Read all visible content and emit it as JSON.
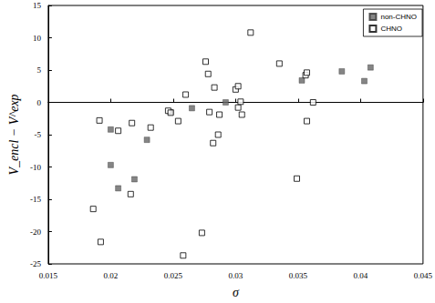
{
  "chart_data": {
    "type": "scatter",
    "x_label": "σ",
    "y_label": "V_encl − V^exp",
    "xlim": [
      0.015,
      0.045
    ],
    "xticks": [
      0.015,
      0.02,
      0.025,
      0.03,
      0.035,
      0.04,
      0.045
    ],
    "ylim": [
      -25,
      15
    ],
    "yticks": [
      -25,
      -20,
      -15,
      -10,
      -5,
      0,
      5,
      10,
      15
    ],
    "grid": false,
    "legend": "top-right",
    "series": [
      {
        "name": "non-CHNO",
        "color": "#666666",
        "marker": "square",
        "x": [
          0.02,
          0.02,
          0.0206,
          0.0219,
          0.0229,
          0.0248,
          0.0265,
          0.0292,
          0.0353,
          0.0385,
          0.0403,
          0.0408
        ],
        "values": [
          -4.2,
          -9.7,
          -13.3,
          -11.9,
          -5.8,
          -1.5,
          -0.9,
          0.0,
          3.4,
          4.8,
          3.3,
          5.4
        ]
      },
      {
        "name": "CHNO",
        "color": "#000000",
        "marker": "square_open",
        "x": [
          0.0186,
          0.0191,
          0.0192,
          0.0206,
          0.0217,
          0.0216,
          0.0232,
          0.0246,
          0.0248,
          0.0254,
          0.026,
          0.0258,
          0.0273,
          0.0276,
          0.0278,
          0.0279,
          0.0283,
          0.0282,
          0.0286,
          0.0287,
          0.03,
          0.0302,
          0.0302,
          0.0304,
          0.0305,
          0.0312,
          0.0335,
          0.0349,
          0.0356,
          0.0357,
          0.0357,
          0.0362
        ],
        "values": [
          -16.5,
          -2.8,
          -21.6,
          -4.4,
          -3.2,
          -14.2,
          -3.9,
          -1.3,
          -1.6,
          -2.9,
          1.2,
          -23.7,
          -20.2,
          6.3,
          4.4,
          -1.5,
          2.3,
          -6.3,
          -5.0,
          -1.9,
          2.0,
          2.5,
          -0.8,
          0.1,
          -1.9,
          10.8,
          6.0,
          -11.8,
          4.2,
          4.6,
          -2.9,
          0.0
        ]
      }
    ]
  }
}
